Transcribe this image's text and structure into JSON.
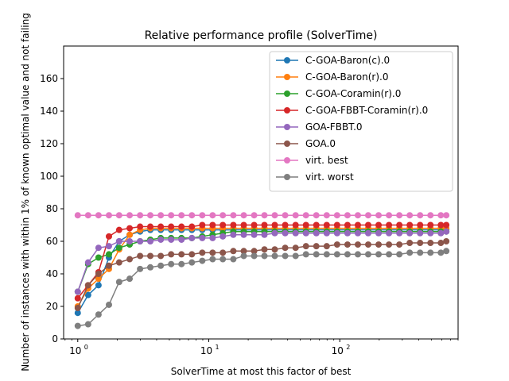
{
  "chart_data": {
    "type": "line",
    "title": "Relative performance profile (SolverTime)",
    "xlabel": "SolverTime at most this factor of best",
    "ylabel": "Number of instances with within 1% of known optimal value and not failing",
    "x_scale": "log",
    "xlim": [
      0.78,
      800
    ],
    "ylim": [
      0,
      180
    ],
    "x_ticks": [
      1,
      10,
      100
    ],
    "x_tick_labels": [
      "10",
      "10",
      "10"
    ],
    "x_tick_exponents": [
      "0",
      "1",
      "2"
    ],
    "y_ticks": [
      0,
      20,
      40,
      60,
      80,
      100,
      120,
      140,
      160
    ],
    "y_tick_labels": [
      "0",
      "20",
      "40",
      "60",
      "80",
      "100",
      "120",
      "140",
      "160"
    ],
    "grid": false,
    "legend_position": "top-right",
    "x": [
      1.0,
      1.2,
      1.44,
      1.73,
      2.07,
      2.49,
      2.99,
      3.58,
      4.3,
      5.16,
      6.19,
      7.43,
      8.92,
      10.7,
      12.8,
      15.4,
      18.5,
      22.2,
      26.6,
      31.9,
      38.3,
      46.0,
      55.2,
      66.2,
      79.5,
      95.4,
      114.5,
      137.4,
      164.8,
      197.8,
      237.4,
      284.9,
      341.8,
      410.2,
      492.2,
      590.7,
      650.0
    ],
    "series": [
      {
        "name": "C-GOA-Baron(c).0",
        "color": "#1f77b4",
        "values": [
          16,
          27,
          33,
          50,
          60,
          64,
          66,
          67,
          67,
          67,
          67,
          67,
          67,
          67,
          67,
          67,
          67,
          67,
          67,
          67,
          67,
          67,
          67,
          67,
          67,
          67,
          67,
          67,
          67,
          67,
          67,
          67,
          67,
          67,
          67,
          67,
          67
        ]
      },
      {
        "name": "C-GOA-Baron(r).0",
        "color": "#ff7f0e",
        "values": [
          20,
          31,
          37,
          43,
          55,
          64,
          67,
          68,
          68,
          68,
          68,
          68,
          68,
          68,
          68,
          68,
          68,
          68,
          68,
          68,
          68,
          68,
          68,
          68,
          68,
          68,
          68,
          68,
          68,
          68,
          68,
          68,
          68,
          68,
          68,
          68,
          68
        ]
      },
      {
        "name": "C-GOA-Coramin(r).0",
        "color": "#2ca02c",
        "values": [
          29,
          46,
          50,
          52,
          56,
          58,
          60,
          61,
          62,
          62,
          62,
          62,
          63,
          64,
          65,
          66,
          66,
          66,
          66,
          66,
          66,
          66,
          66,
          66,
          66,
          66,
          66,
          66,
          66,
          66,
          66,
          66,
          66,
          66,
          66,
          66,
          66
        ]
      },
      {
        "name": "C-GOA-FBBT-Coramin(r).0",
        "color": "#d62728",
        "values": [
          25,
          33,
          41,
          63,
          67,
          68,
          69,
          69,
          69,
          69,
          69,
          69,
          70,
          70,
          70,
          70,
          70,
          70,
          70,
          70,
          70,
          70,
          70,
          70,
          70,
          70,
          70,
          70,
          70,
          70,
          70,
          70,
          70,
          70,
          70,
          70,
          70
        ]
      },
      {
        "name": "GOA-FBBT.0",
        "color": "#9467bd",
        "values": [
          29,
          47,
          56,
          57,
          60,
          60,
          60,
          60,
          61,
          61,
          61,
          62,
          62,
          62,
          63,
          64,
          64,
          64,
          64,
          65,
          65,
          65,
          65,
          65,
          65,
          65,
          65,
          65,
          65,
          65,
          65,
          65,
          65,
          65,
          65,
          65,
          66
        ]
      },
      {
        "name": "GOA.0",
        "color": "#8c564b",
        "values": [
          19,
          33,
          40,
          45,
          47,
          49,
          51,
          51,
          51,
          52,
          52,
          52,
          53,
          53,
          53,
          54,
          54,
          54,
          55,
          55,
          56,
          56,
          57,
          57,
          57,
          58,
          58,
          58,
          58,
          58,
          58,
          58,
          59,
          59,
          59,
          59,
          60
        ]
      },
      {
        "name": "virt. best",
        "color": "#e377c2",
        "values": [
          76,
          76,
          76,
          76,
          76,
          76,
          76,
          76,
          76,
          76,
          76,
          76,
          76,
          76,
          76,
          76,
          76,
          76,
          76,
          76,
          76,
          76,
          76,
          76,
          76,
          76,
          76,
          76,
          76,
          76,
          76,
          76,
          76,
          76,
          76,
          76,
          76
        ]
      },
      {
        "name": "virt. worst",
        "color": "#7f7f7f",
        "values": [
          8,
          9,
          15,
          21,
          35,
          37,
          43,
          44,
          45,
          46,
          46,
          47,
          48,
          49,
          49,
          49,
          51,
          51,
          51,
          51,
          51,
          51,
          52,
          52,
          52,
          52,
          52,
          52,
          52,
          52,
          52,
          52,
          53,
          53,
          53,
          53,
          54
        ]
      }
    ]
  }
}
